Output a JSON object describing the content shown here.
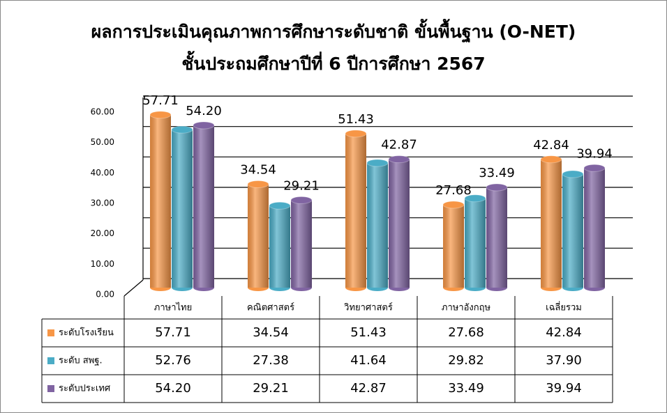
{
  "chart_data": {
    "type": "bar",
    "title": [
      "ผลการประเมินคุณภาพการศึกษาระดับชาติ ขั้นพื้นฐาน (O-NET)",
      "ชั้นประถมศึกษาปีที่ 6 ปีการศึกษา 2567"
    ],
    "categories": [
      "ภาษาไทย",
      "คณิตศาสตร์",
      "วิทยาศาสตร์",
      "ภาษาอังกฤษ",
      "เฉลี่ยรวม"
    ],
    "series": [
      {
        "name": "ระดับโรงเรียน",
        "color": "#f79646",
        "show_data_labels": true,
        "values": [
          57.71,
          34.54,
          51.43,
          27.68,
          42.84
        ],
        "value_labels": [
          "57.71",
          "34.54",
          "51.43",
          "27.68",
          "42.84"
        ]
      },
      {
        "name": "ระดับ สพฐ.",
        "color": "#4bacc6",
        "show_data_labels": false,
        "values": [
          52.76,
          27.38,
          41.64,
          29.82,
          37.9
        ],
        "value_labels": [
          "52.76",
          "27.38",
          "41.64",
          "29.82",
          "37.90"
        ]
      },
      {
        "name": "ระดับประเทศ",
        "color": "#8064a2",
        "show_data_labels": true,
        "values": [
          54.2,
          29.21,
          42.87,
          33.49,
          39.94
        ],
        "value_labels": [
          "54.20",
          "29.21",
          "42.87",
          "33.49",
          "39.94"
        ]
      }
    ],
    "ylim": [
      0,
      60
    ],
    "yticks": [
      {
        "value": 0,
        "label": "0.00"
      },
      {
        "value": 10,
        "label": "10.00"
      },
      {
        "value": 20,
        "label": "20.00"
      },
      {
        "value": 30,
        "label": "30.00"
      },
      {
        "value": 40,
        "label": "40.00"
      },
      {
        "value": 50,
        "label": "50.00"
      },
      {
        "value": 60,
        "label": "60.00"
      }
    ],
    "grid": true,
    "data_table": true
  }
}
